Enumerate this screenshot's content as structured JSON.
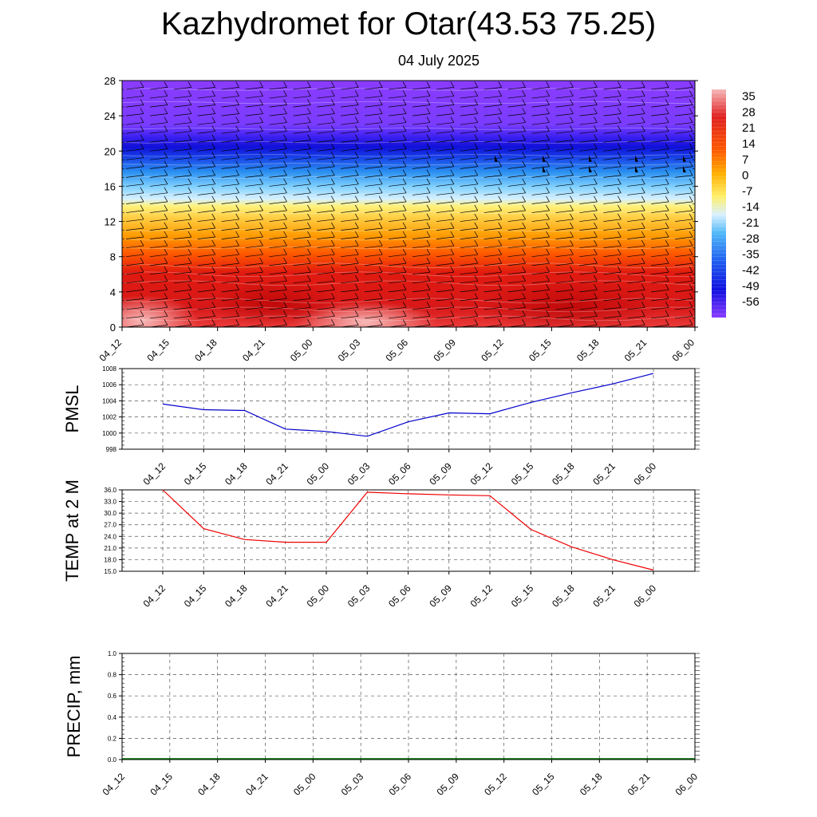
{
  "header": {
    "title": "Kazhydromet for Otar(43.53 75.25)",
    "subtitle": "04 July 2025"
  },
  "chart_data": [
    {
      "type": "heatmap",
      "name": "temperature-height-section",
      "title": "",
      "xlabel": "",
      "ylabel": "",
      "x": [
        "04_12",
        "04_15",
        "04_18",
        "04_21",
        "05_00",
        "05_03",
        "05_06",
        "05_09",
        "05_12",
        "05_15",
        "05_18",
        "05_21",
        "06_00"
      ],
      "yticks": [
        0,
        4,
        8,
        12,
        16,
        20,
        24,
        28
      ],
      "ylim": [
        0,
        28
      ],
      "colorbar": {
        "labels": [
          "35",
          "28",
          "21",
          "14",
          "7",
          "0",
          "-7",
          "-14",
          "-21",
          "-28",
          "-35",
          "-42",
          "-49",
          "-56"
        ],
        "range": [
          -63,
          38
        ]
      },
      "colors": {
        "warm": "#e02020",
        "hot": "#f6b8b8",
        "orange": "#ff8c00",
        "yellow": "#ffef60",
        "cyan": "#40b0f0",
        "blue": "#1020e0",
        "violet": "#8040ff"
      },
      "wind_barbs": true
    },
    {
      "type": "line",
      "name": "pmsl",
      "ylabel": "PMSL",
      "categories": [
        "04_12",
        "04_15",
        "04_18",
        "04_21",
        "05_00",
        "05_03",
        "05_06",
        "05_09",
        "05_12",
        "05_15",
        "05_18",
        "05_21",
        "06_00"
      ],
      "values": [
        1003.6,
        1002.9,
        1002.8,
        1000.5,
        1000.2,
        999.6,
        1001.4,
        1002.5,
        1002.4,
        1003.8,
        1005.0,
        1006.1,
        1007.4
      ],
      "ylim": [
        998,
        1008
      ],
      "yticks": [
        998,
        1000,
        1002,
        1004,
        1006,
        1008
      ],
      "ytick_labels": [
        "998",
        "1000",
        "1002",
        "1004",
        "1006",
        "1008"
      ],
      "color": "#0000cc",
      "grid": true
    },
    {
      "type": "line",
      "name": "temp2m",
      "ylabel": "TEMP at 2 M",
      "categories": [
        "04_12",
        "04_15",
        "04_18",
        "04_21",
        "05_00",
        "05_03",
        "05_06",
        "05_09",
        "05_12",
        "05_15",
        "05_18",
        "05_21",
        "06_00"
      ],
      "values": [
        36.0,
        26.0,
        23.2,
        22.5,
        22.5,
        35.4,
        35.0,
        34.7,
        34.5,
        25.8,
        21.3,
        18.0,
        15.3
      ],
      "ylim": [
        15,
        36
      ],
      "yticks": [
        15,
        18,
        21,
        24,
        27,
        30,
        33,
        36
      ],
      "ytick_labels": [
        "15.0",
        "18.0",
        "21.0",
        "24.0",
        "27.0",
        "30.0",
        "33.0",
        "36.0"
      ],
      "color": "#ee0000",
      "grid": true
    },
    {
      "type": "line",
      "name": "precip",
      "ylabel": "PRECIP, mm",
      "categories": [
        "04_12",
        "04_15",
        "04_18",
        "04_21",
        "05_00",
        "05_03",
        "05_06",
        "05_09",
        "05_12",
        "05_15",
        "05_18",
        "05_21",
        "06_00"
      ],
      "values": [
        0,
        0,
        0,
        0,
        0,
        0,
        0,
        0,
        0,
        0,
        0,
        0,
        0
      ],
      "ylim": [
        0,
        1
      ],
      "yticks": [
        0,
        0.2,
        0.4,
        0.6,
        0.8,
        1.0
      ],
      "ytick_labels": [
        "0.0",
        "0.2",
        "0.4",
        "0.6",
        "0.8",
        "1.0"
      ],
      "color": "#006400",
      "grid": true
    }
  ]
}
